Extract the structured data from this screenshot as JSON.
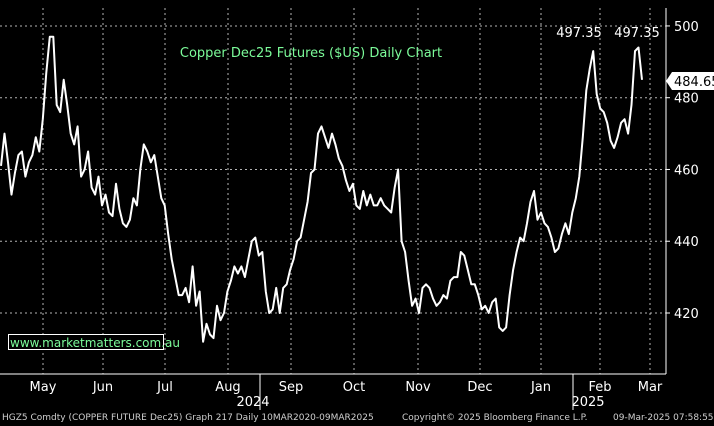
{
  "chart_data": {
    "type": "line",
    "title": "Copper Dec25 Futures ($US) Daily Chart",
    "ylim": [
      403,
      505
    ],
    "yticks": [
      420,
      440,
      460,
      480,
      500
    ],
    "x_tick_labels": [
      "May",
      "Jun",
      "Jul",
      "Aug",
      "Sep",
      "Oct",
      "Nov",
      "Dec",
      "Jan",
      "Feb",
      "Mar"
    ],
    "year_labels": [
      "2024",
      "2025"
    ],
    "last_value": "484.65",
    "peak_labels": [
      "497.35",
      "497.35"
    ],
    "grid": true,
    "series": [
      {
        "values": [
          461,
          470,
          462,
          453,
          459,
          464,
          465,
          458,
          462,
          464,
          469,
          465,
          474,
          487,
          497,
          497,
          478,
          476,
          485,
          478,
          470,
          467,
          472,
          458,
          460,
          465,
          455,
          453,
          458,
          450,
          453,
          448,
          447,
          456,
          449,
          445,
          444,
          446,
          452,
          450,
          460,
          467,
          465,
          462,
          464,
          458,
          452,
          450,
          442,
          435,
          430,
          425,
          425,
          427,
          423,
          433,
          422,
          426,
          412,
          417,
          414,
          413,
          422,
          418,
          420,
          426,
          429,
          433,
          431,
          433,
          430,
          435,
          440,
          441,
          436,
          437,
          426,
          420,
          421,
          427,
          420,
          427,
          428,
          432,
          435,
          440,
          441,
          446,
          451,
          459,
          460,
          470,
          472,
          469,
          466,
          470,
          467,
          463,
          461,
          457,
          454,
          456,
          450,
          449,
          454,
          450,
          453,
          450,
          450,
          452,
          450,
          449,
          448,
          455,
          460,
          440,
          437,
          429,
          422,
          424,
          420,
          427,
          428,
          427,
          424,
          422,
          423,
          425,
          424,
          429,
          430,
          430,
          437,
          436,
          432,
          428,
          428,
          425,
          421,
          422,
          420,
          423,
          424,
          416,
          415,
          416,
          425,
          432,
          437,
          441,
          440,
          445,
          451,
          454,
          446,
          448,
          445,
          444,
          441,
          437,
          438,
          442,
          445,
          442,
          448,
          452,
          458,
          469,
          482,
          488,
          493,
          481,
          477,
          476,
          473,
          468,
          466,
          469,
          473,
          474,
          470,
          478,
          493,
          494,
          485
        ]
      }
    ]
  },
  "watermark": "www.marketmatters.com.au",
  "footer": {
    "ticker": "HGZ5 Comdty (COPPER FUTURE",
    "graph": "Dec25) Graph 217  Daily 10MAR2020-09MAR2025",
    "copyright": "Copyright© 2025 Bloomberg Finance L.P.",
    "timestamp": "09-Mar-2025 07:58:55"
  },
  "colors": {
    "background": "#000000",
    "line": "#ffffff",
    "grid": "#ffffff",
    "title": "#7CFC9A",
    "last_badge": "#ffffff"
  }
}
